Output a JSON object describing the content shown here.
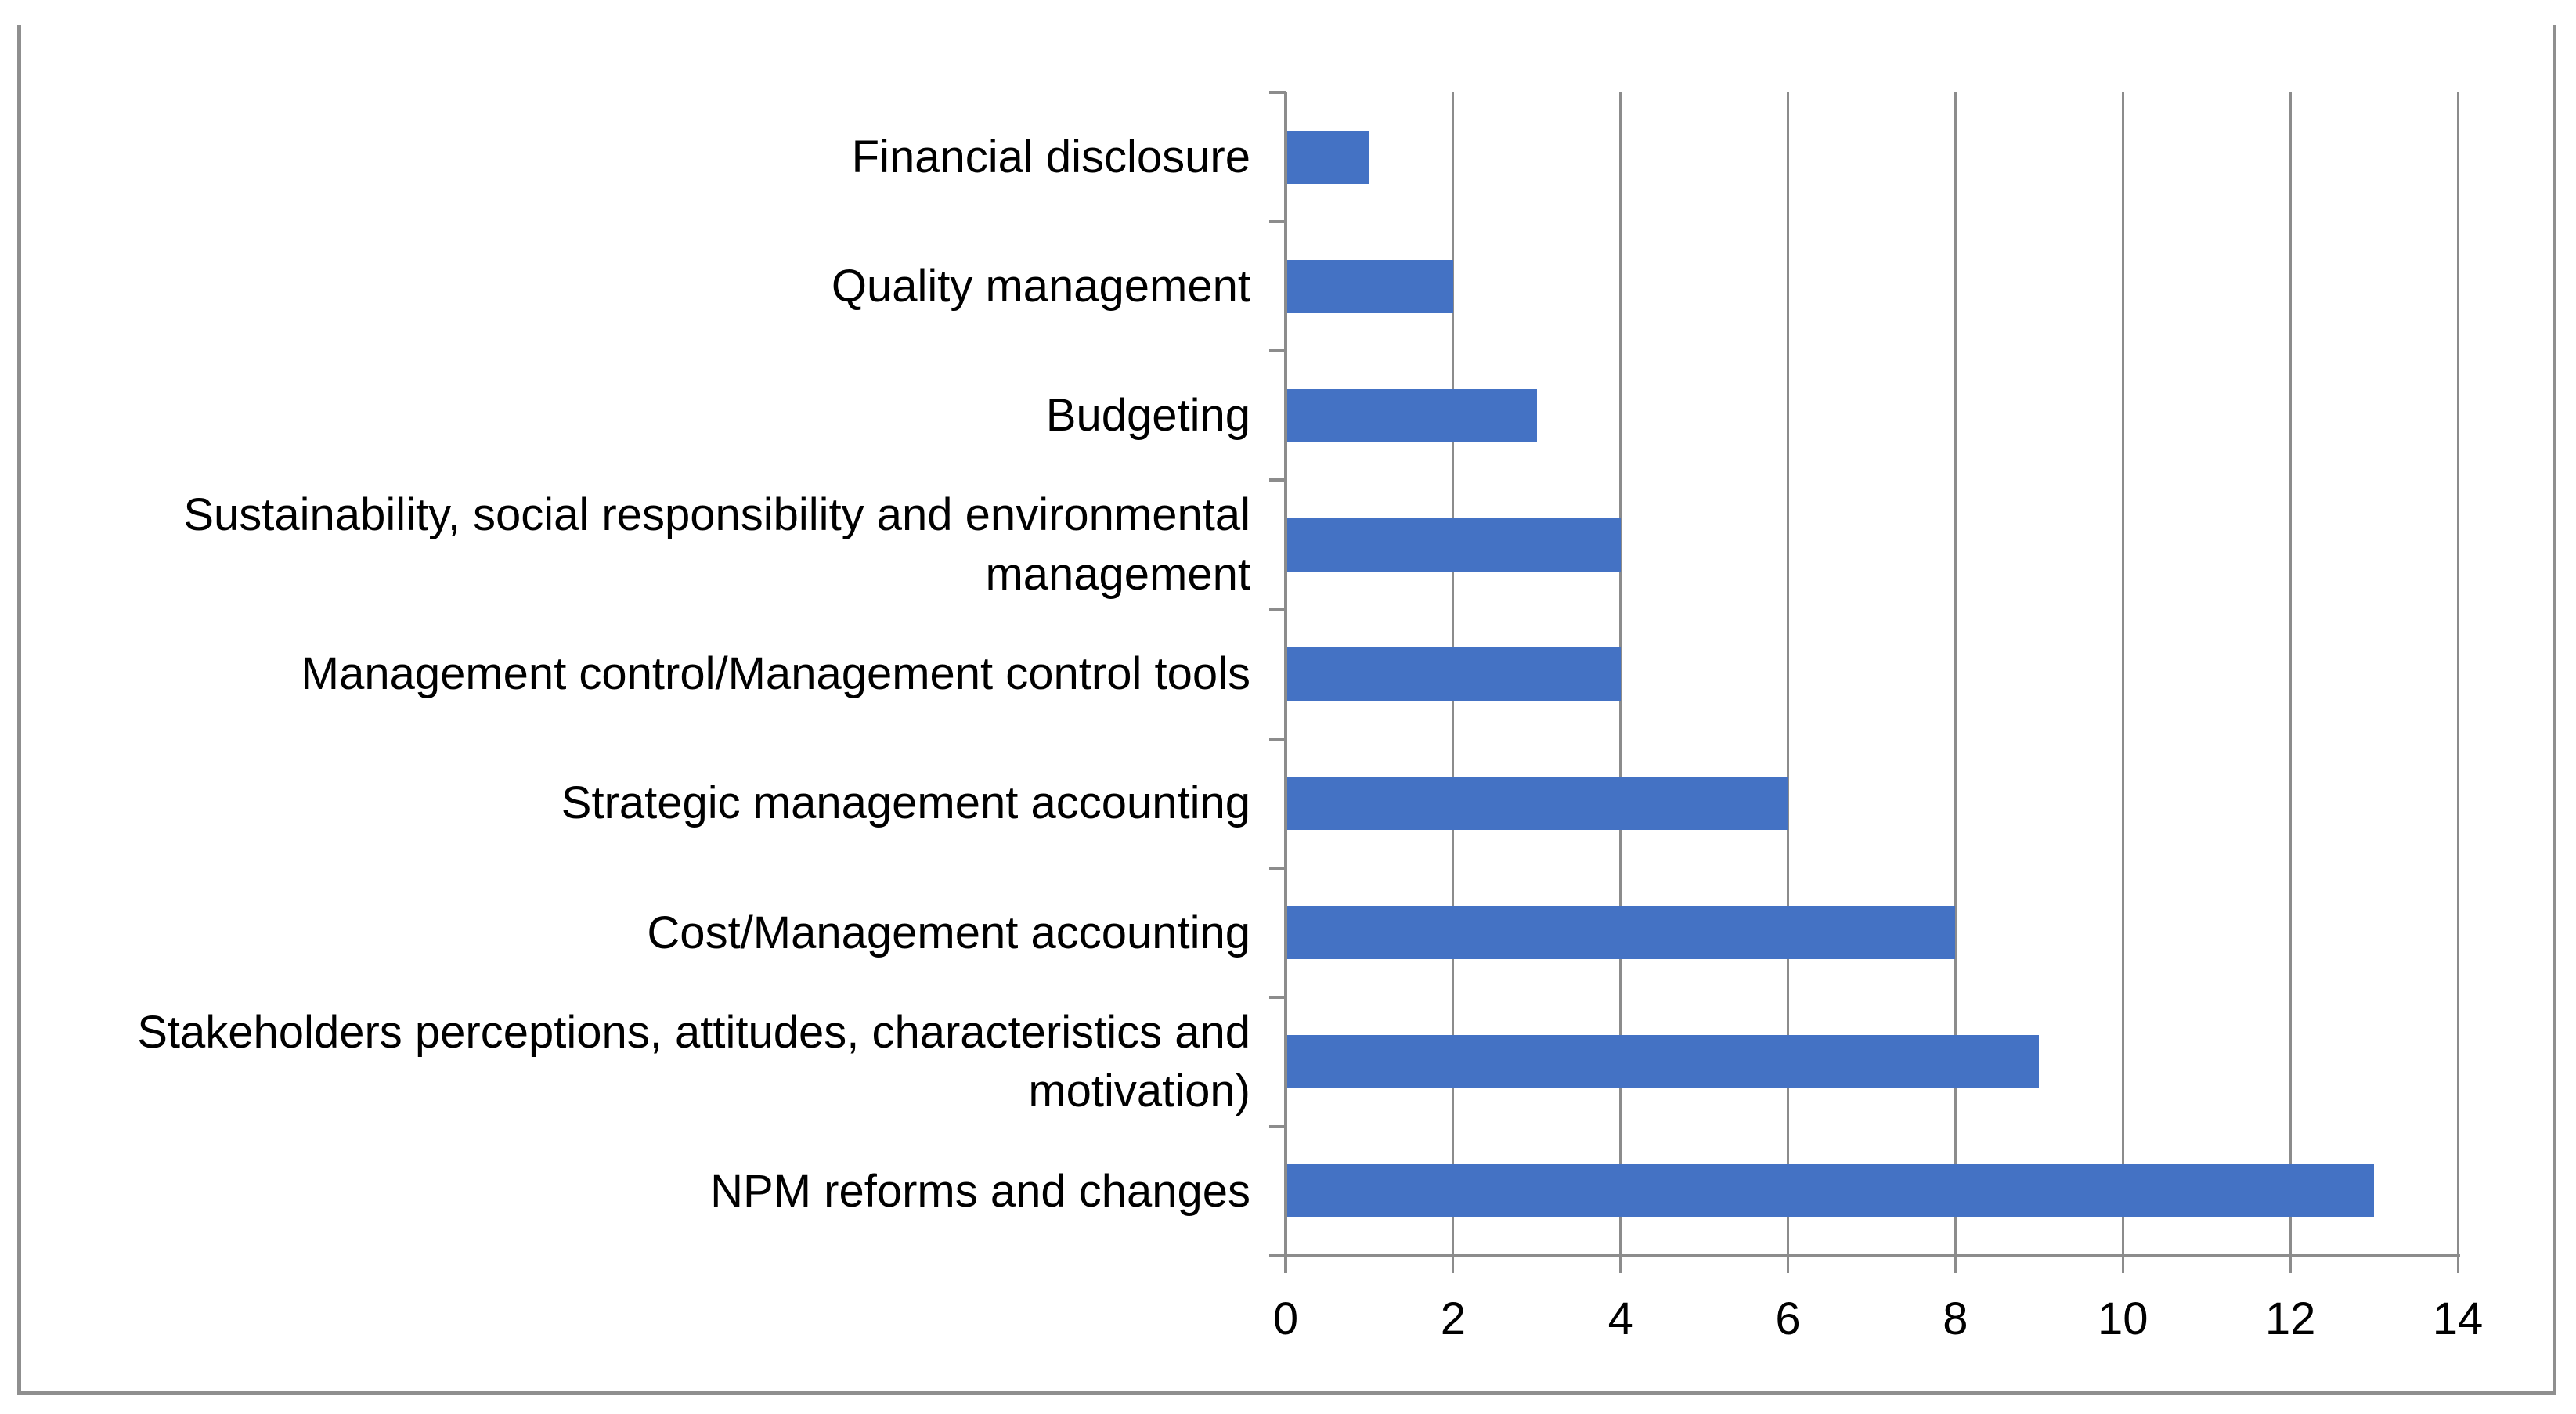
{
  "chart_data": {
    "type": "bar",
    "orientation": "horizontal",
    "title": "",
    "xlabel": "",
    "ylabel": "",
    "categories": [
      "Financial disclosure",
      "Quality management",
      "Budgeting",
      "Sustainability, social responsibility and environmental management",
      "Management control/Management control tools",
      "Strategic management accounting",
      "Cost/Management accounting",
      "Stakeholders perceptions, attitudes, characteristics and motivation)",
      "NPM reforms and changes"
    ],
    "values": [
      1,
      2,
      3,
      4,
      4,
      6,
      8,
      9,
      13
    ],
    "xlim": [
      0,
      14
    ],
    "xticks": [
      0,
      2,
      4,
      6,
      8,
      10,
      12,
      14
    ],
    "grid": "vertical",
    "legend": "none",
    "colors": {
      "bar": "#4472C4",
      "gridline": "#8C8C8C",
      "axis": "#8C8C8C",
      "frame": "#8F8F8F",
      "text": "#000000",
      "background": "#FFFFFF"
    }
  }
}
